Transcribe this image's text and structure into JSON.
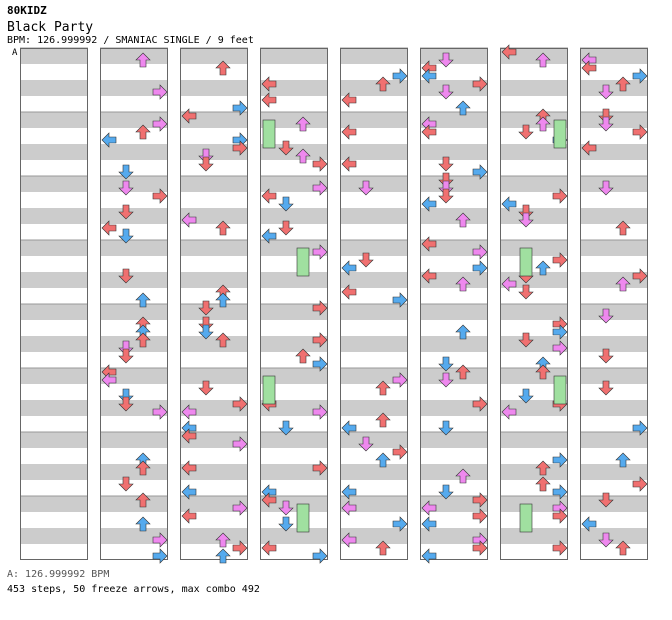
{
  "title": "80KIDZ",
  "subtitle": "Black Party",
  "info": "BPM: 126.999992 / SMANIAC SINGLE / 9 feet",
  "section_label": "A",
  "footer_bpm": "A: 126.999992 BPM",
  "footer_stats": "453 steps, 50 freeze arrows, max combo 492",
  "colors": {
    "red": "#f07070",
    "blue": "#55aaee",
    "pink": "#ee88ee",
    "green": "#a0e0a0",
    "stripe": "#cccccc"
  },
  "chart_data": {
    "type": "step-chart",
    "columns": 8,
    "measures_per_column": 8,
    "lanes": [
      "left",
      "down",
      "up",
      "right"
    ]
  }
}
